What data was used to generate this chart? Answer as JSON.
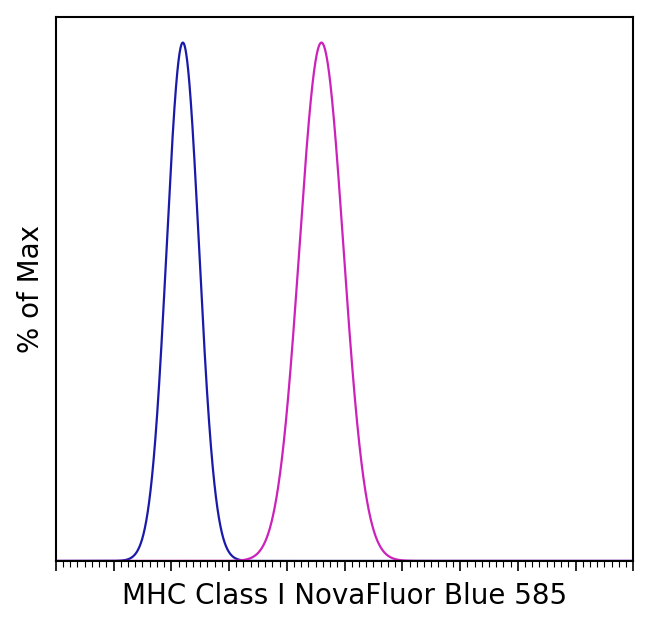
{
  "title": "",
  "xlabel": "MHC Class I NovaFluor Blue 585",
  "ylabel": "% of Max",
  "background_color": "#ffffff",
  "curve1_color": "#1a1aaa",
  "curve2_color": "#cc22bb",
  "curve1_mean": 0.22,
  "curve1_std": 0.028,
  "curve2_mean": 0.46,
  "curve2_std": 0.038,
  "xlim": [
    0,
    1
  ],
  "ylim": [
    0,
    1.05
  ],
  "linewidth": 1.6,
  "xlabel_fontsize": 20,
  "ylabel_fontsize": 20,
  "n_minor_ticks": 80,
  "n_major_ticks": 10
}
